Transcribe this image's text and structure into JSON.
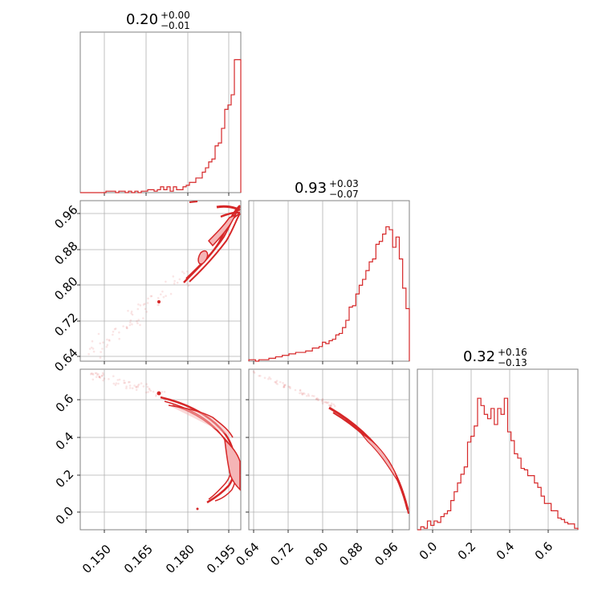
{
  "chart_data": {
    "type": "corner",
    "color": "#d62728",
    "grid": true,
    "parameters": [
      {
        "title": "0.20",
        "err_plus": "+0.00",
        "err_minus": "−0.01",
        "range": [
          0.144,
          0.2
        ],
        "ticks": [
          0.15,
          0.165,
          0.18,
          0.195
        ],
        "tick_labels": [
          "0.150",
          "0.165",
          "0.180",
          "0.195"
        ],
        "hist_counts": [
          0,
          0,
          0,
          0,
          0,
          0,
          0,
          0,
          0.01,
          0.01,
          0.01,
          0,
          0.01,
          0.01,
          0,
          0.01,
          0,
          0.01,
          0,
          0.01,
          0.01,
          0.02,
          0.02,
          0.01,
          0.02,
          0.04,
          0.02,
          0.04,
          0.01,
          0.04,
          0.02,
          0.02,
          0.04,
          0.05,
          0.07,
          0.07,
          0.1,
          0.1,
          0.14,
          0.17,
          0.21,
          0.23,
          0.32,
          0.34,
          0.44,
          0.57,
          0.6,
          0.67,
          0.91,
          0.91
        ]
      },
      {
        "title": "0.93",
        "err_plus": "+0.03",
        "err_minus": "−0.07",
        "range": [
          0.63,
          1.0
        ],
        "ticks": [
          0.64,
          0.72,
          0.8,
          0.88,
          0.96
        ],
        "tick_labels": [
          "0.64",
          "0.72",
          "0.80",
          "0.88",
          "0.96"
        ],
        "hist_counts": [
          0.01,
          0.01,
          0,
          0.01,
          0.01,
          0.01,
          0.02,
          0.02,
          0.03,
          0.03,
          0.04,
          0.04,
          0.05,
          0.05,
          0.06,
          0.06,
          0.06,
          0.07,
          0.07,
          0.09,
          0.09,
          0.1,
          0.13,
          0.12,
          0.14,
          0.15,
          0.18,
          0.19,
          0.23,
          0.28,
          0.37,
          0.38,
          0.46,
          0.52,
          0.56,
          0.62,
          0.68,
          0.7,
          0.8,
          0.82,
          0.87,
          0.92,
          0.9,
          0.78,
          0.85,
          0.7,
          0.5,
          0.36
        ]
      },
      {
        "title": "0.32",
        "err_plus": "+0.16",
        "err_minus": "−0.13",
        "range": [
          -0.08,
          0.75
        ],
        "ticks": [
          0.0,
          0.2,
          0.4,
          0.6
        ],
        "tick_labels": [
          "0.0",
          "0.2",
          "0.4",
          "0.6"
        ],
        "hist_counts": [
          0,
          0.02,
          0.01,
          0.06,
          0.03,
          0.06,
          0.05,
          0.09,
          0.11,
          0.13,
          0.2,
          0.26,
          0.32,
          0.38,
          0.43,
          0.6,
          0.64,
          0.71,
          0.9,
          0.85,
          0.79,
          0.76,
          0.83,
          0.72,
          0.83,
          0.79,
          0.9,
          0.67,
          0.61,
          0.52,
          0.49,
          0.42,
          0.41,
          0.37,
          0.37,
          0.32,
          0.29,
          0.23,
          0.18,
          0.18,
          0.13,
          0.13,
          0.08,
          0.07,
          0.05,
          0.04,
          0.04,
          0.01
        ]
      }
    ],
    "y_tick_labels_row1": [
      "0.64",
      "0.72",
      "0.80",
      "0.88",
      "0.96"
    ],
    "y_tick_labels_row2": [
      "0.0",
      "0.2",
      "0.4",
      "0.6"
    ]
  }
}
